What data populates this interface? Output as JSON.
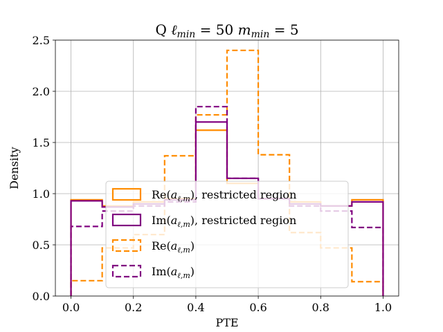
{
  "chart_data": {
    "type": "histogram-step",
    "title_prefix": "Q",
    "title_math": [
      {
        "base": "ℓ",
        "sub": "min",
        "eq": " = 50"
      },
      {
        "base": "m",
        "sub": "min",
        "eq": " = 5"
      }
    ],
    "xlabel": "PTE",
    "ylabel": "Density",
    "xlim": [
      -0.05,
      1.05
    ],
    "ylim": [
      0,
      2.5
    ],
    "xticks": [
      0.0,
      0.2,
      0.4,
      0.6,
      0.8,
      1.0
    ],
    "xtick_labels": [
      "0.0",
      "0.2",
      "0.4",
      "0.6",
      "0.8",
      "1.0"
    ],
    "yticks": [
      0.0,
      0.5,
      1.0,
      1.5,
      2.0,
      2.5
    ],
    "ytick_labels": [
      "0.0",
      "0.5",
      "1.0",
      "1.5",
      "2.0",
      "2.5"
    ],
    "grid": true,
    "legend_position": "lower-center",
    "bin_edges": [
      0.0,
      0.1,
      0.2,
      0.3,
      0.4,
      0.5,
      0.6,
      0.7,
      0.8,
      0.9,
      1.0
    ],
    "series": [
      {
        "key": "re_restricted",
        "math": {
          "prefix": "Re(",
          "base": "a",
          "sub": "ℓ,m",
          "suffix": ")"
        },
        "label_suffix": ", restricted region",
        "color": "#ff8c00",
        "dash": "solid",
        "values": [
          0.94,
          0.88,
          0.92,
          0.95,
          1.62,
          1.1,
          0.95,
          0.92,
          0.88,
          0.94
        ]
      },
      {
        "key": "im_restricted",
        "math": {
          "prefix": "Im(",
          "base": "a",
          "sub": "ℓ,m",
          "suffix": ")"
        },
        "label_suffix": ", restricted region",
        "color": "#800080",
        "dash": "solid",
        "values": [
          0.93,
          0.87,
          0.9,
          0.94,
          1.7,
          1.15,
          0.95,
          0.9,
          0.88,
          0.92
        ]
      },
      {
        "key": "re",
        "math": {
          "prefix": "Re(",
          "base": "a",
          "sub": "ℓ,m",
          "suffix": ")"
        },
        "label_suffix": "",
        "color": "#ff8c00",
        "dash": "dashed",
        "values": [
          0.15,
          0.47,
          0.6,
          1.37,
          1.77,
          2.4,
          1.38,
          0.62,
          0.47,
          0.14
        ]
      },
      {
        "key": "im",
        "math": {
          "prefix": "Im(",
          "base": "a",
          "sub": "ℓ,m",
          "suffix": ")"
        },
        "label_suffix": "",
        "color": "#800080",
        "dash": "dashed",
        "values": [
          0.68,
          0.83,
          0.88,
          0.92,
          1.85,
          1.15,
          0.95,
          0.88,
          0.83,
          0.67
        ]
      }
    ]
  }
}
